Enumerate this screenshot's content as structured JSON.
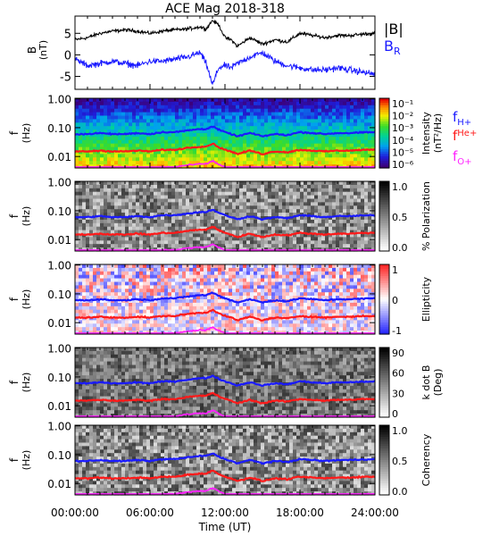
{
  "title": "ACE Mag 2018-318",
  "panel1": {
    "ylabel_top": "B",
    "ylabel_bottom": "(nT)",
    "yticks": [
      "5",
      "0",
      "-5"
    ],
    "ytick_values": [
      5,
      0,
      -5
    ],
    "ylim": [
      -8,
      9
    ],
    "legend_B": "|B|",
    "legend_BR_main": "B",
    "legend_BR_sub": "R",
    "color_B": "#000000",
    "color_BR": "#1a1aff"
  },
  "freq_panels": [
    {
      "name": "intensity",
      "colorbar_label_1": "Intensity",
      "colorbar_label_2": "(nT²/Hz)",
      "cb_ticks": [
        "10⁻¹",
        "10⁻²",
        "10⁻³",
        "10⁻⁴",
        "10⁻⁵",
        "10⁻⁶"
      ],
      "palette": "rainbow"
    },
    {
      "name": "polarization",
      "colorbar_label_1": "% Polarization",
      "colorbar_label_2": "",
      "cb_ticks": [
        "1.0",
        "0.5",
        "0.0"
      ],
      "palette": "gray"
    },
    {
      "name": "ellipticity",
      "colorbar_label_1": "Ellipticity",
      "colorbar_label_2": "",
      "cb_ticks": [
        "1",
        "0",
        "-1"
      ],
      "palette": "bwr"
    },
    {
      "name": "kdotb",
      "colorbar_label_1": "k dot B",
      "colorbar_label_2": "(Deg)",
      "cb_ticks": [
        "90",
        "60",
        "30",
        "0"
      ],
      "palette": "gray"
    },
    {
      "name": "coherency",
      "colorbar_label_1": "Coherency",
      "colorbar_label_2": "",
      "cb_ticks": [
        "1.0",
        "0.5",
        "0.0"
      ],
      "palette": "gray"
    }
  ],
  "freq_axis": {
    "ylabel_top": "f",
    "ylabel_bottom": "(Hz)",
    "ticks": [
      "1.00",
      "0.10",
      "0.01"
    ],
    "tick_values": [
      1.0,
      0.1,
      0.01
    ],
    "ylim": [
      0.004,
      1.05
    ],
    "scale": "log"
  },
  "gyro_legend": {
    "H": {
      "main": "f",
      "sub": "H+",
      "color": "#1a1aff"
    },
    "He": {
      "main": "f",
      "sup": "He+",
      "color": "#ff1a1a"
    },
    "O": {
      "main": "f",
      "sub": "O+",
      "color": "#ff22ff"
    }
  },
  "x_axis": {
    "ticks": [
      "00:00:00",
      "06:00:00",
      "12:00:00",
      "18:00:00",
      "24:00:00"
    ],
    "tick_hours": [
      0,
      6,
      12,
      18,
      24
    ],
    "label": "Time (UT)",
    "xlim": [
      0,
      24
    ]
  },
  "chart_data": {
    "type": "line",
    "title": "ACE Mag 2018-318",
    "x_unit": "hours UT",
    "x": [
      0,
      1,
      2,
      3,
      4,
      5,
      6,
      7,
      8,
      9,
      10,
      10.5,
      11,
      11.5,
      12,
      12.5,
      13,
      14,
      15,
      16,
      17,
      18,
      19,
      20,
      21,
      22,
      23,
      24
    ],
    "series": [
      {
        "name": "|B|",
        "values": [
          3.5,
          4.0,
          5.0,
          5.5,
          5.8,
          5.5,
          5.0,
          5.5,
          5.8,
          6.0,
          6.5,
          6.0,
          8.0,
          7.0,
          4.0,
          3.5,
          2.0,
          4.0,
          2.5,
          3.5,
          3.0,
          5.0,
          4.5,
          4.0,
          4.5,
          4.5,
          4.8,
          5.0
        ]
      },
      {
        "name": "B",
        "values": [
          -1.0,
          -2.5,
          -2.0,
          -1.5,
          -2.0,
          -2.5,
          -1.5,
          -1.5,
          -1.0,
          -0.5,
          0.5,
          -2.0,
          -7.0,
          -3.0,
          -2.5,
          -3.0,
          -2.0,
          -0.5,
          0.5,
          -1.5,
          -2.5,
          -3.0,
          -3.5,
          -3.5,
          -3.0,
          -3.5,
          -4.0,
          -4.5
        ]
      }
    ],
    "f_H_plus_Hz": [
      0.06,
      0.06,
      0.065,
      0.06,
      0.06,
      0.065,
      0.06,
      0.07,
      0.07,
      0.08,
      0.09,
      0.09,
      0.11,
      0.085,
      0.07,
      0.06,
      0.05,
      0.065,
      0.05,
      0.06,
      0.055,
      0.07,
      0.065,
      0.06,
      0.065,
      0.065,
      0.068,
      0.07
    ],
    "f_He_plus_Hz": [
      0.015,
      0.015,
      0.016,
      0.015,
      0.015,
      0.016,
      0.015,
      0.017,
      0.017,
      0.02,
      0.022,
      0.022,
      0.028,
      0.021,
      0.017,
      0.015,
      0.012,
      0.016,
      0.012,
      0.015,
      0.014,
      0.017,
      0.016,
      0.015,
      0.016,
      0.016,
      0.017,
      0.017
    ],
    "f_O_plus_Hz": [
      0.0038,
      0.0038,
      0.004,
      0.0038,
      0.0038,
      0.004,
      0.0038,
      0.0043,
      0.0043,
      0.005,
      0.0055,
      0.0055,
      0.007,
      0.0053,
      0.0043,
      0.0038,
      0.003,
      0.004,
      0.003,
      0.0038,
      0.0035,
      0.0043,
      0.004,
      0.0038,
      0.004,
      0.004,
      0.0042,
      0.0043
    ]
  }
}
